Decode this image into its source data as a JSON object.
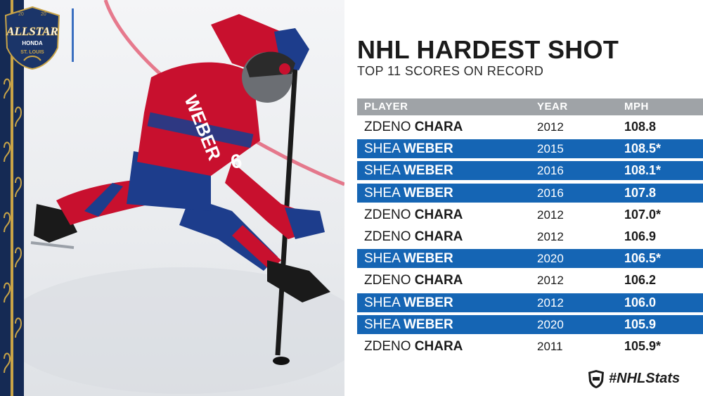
{
  "header": {
    "title": "NHL HARDEST SHOT",
    "subtitle": "TOP 11 SCORES ON RECORD"
  },
  "logo": {
    "year_left": "20",
    "year_right": "20",
    "brand": "ALLSTAR",
    "sponsor": "HONDA",
    "city": "ST. LOUIS"
  },
  "jersey": {
    "name": "WEBER",
    "number": "6"
  },
  "table": {
    "columns": [
      "PLAYER",
      "YEAR",
      "MPH"
    ],
    "rows": [
      {
        "first": "ZDENO",
        "last": "CHARA",
        "year": "2012",
        "mph": "108.8",
        "style": "white"
      },
      {
        "first": "SHEA",
        "last": "WEBER",
        "year": "2015",
        "mph": "108.5*",
        "style": "blue"
      },
      {
        "first": "SHEA",
        "last": "WEBER",
        "year": "2016",
        "mph": "108.1*",
        "style": "blue"
      },
      {
        "first": "SHEA",
        "last": "WEBER",
        "year": "2016",
        "mph": "107.8",
        "style": "blue"
      },
      {
        "first": "ZDENO",
        "last": "CHARA",
        "year": "2012",
        "mph": "107.0*",
        "style": "white"
      },
      {
        "first": "ZDENO",
        "last": "CHARA",
        "year": "2012",
        "mph": "106.9",
        "style": "white"
      },
      {
        "first": "SHEA",
        "last": "WEBER",
        "year": "2020",
        "mph": "106.5*",
        "style": "blue"
      },
      {
        "first": "ZDENO",
        "last": "CHARA",
        "year": "2012",
        "mph": "106.2",
        "style": "white"
      },
      {
        "first": "SHEA",
        "last": "WEBER",
        "year": "2012",
        "mph": "106.0",
        "style": "blue"
      },
      {
        "first": "SHEA",
        "last": "WEBER",
        "year": "2020",
        "mph": "105.9",
        "style": "blue"
      },
      {
        "first": "ZDENO",
        "last": "CHARA",
        "year": "2011",
        "mph": "105.9*",
        "style": "white"
      }
    ]
  },
  "footer": {
    "hashtag": "#NHLStats",
    "icon": "nhl-shield-icon"
  },
  "colors": {
    "row_blue": "#1565b4",
    "header_gray": "#9fa3a7",
    "jersey_red": "#c8102e",
    "jersey_blue": "#1d3d8c"
  }
}
